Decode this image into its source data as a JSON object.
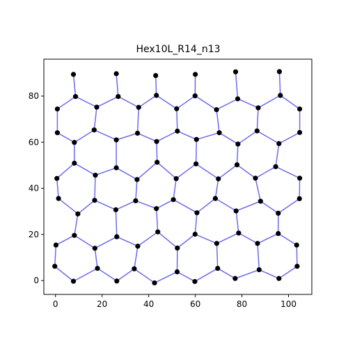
{
  "chart_data": {
    "type": "graph",
    "title": "Hex10L_R14_n13",
    "xlim": [
      -5,
      110
    ],
    "ylim": [
      -6,
      96
    ],
    "x_ticks": [
      0,
      20,
      40,
      60,
      80,
      100
    ],
    "y_ticks": [
      0,
      20,
      40,
      60,
      80
    ],
    "colors": {
      "edge": "#6a6af0",
      "node": "#000000"
    },
    "nodes": [
      [
        7.7,
        89.4
      ],
      [
        26.1,
        89.7
      ],
      [
        43.0,
        88.9
      ],
      [
        60.0,
        89.4
      ],
      [
        77.3,
        90.5
      ],
      [
        96.1,
        90.6
      ],
      [
        0.8,
        74.4
      ],
      [
        8.6,
        79.8
      ],
      [
        17.7,
        75.2
      ],
      [
        26.9,
        79.8
      ],
      [
        35.7,
        75.1
      ],
      [
        43.3,
        80.3
      ],
      [
        52.0,
        74.5
      ],
      [
        59.9,
        80.1
      ],
      [
        69.1,
        74.1
      ],
      [
        78.2,
        78.8
      ],
      [
        87.0,
        74.9
      ],
      [
        96.5,
        80.3
      ],
      [
        104.8,
        74.4
      ],
      [
        0.8,
        64.1
      ],
      [
        8.1,
        59.9
      ],
      [
        16.6,
        65.3
      ],
      [
        26.1,
        61.0
      ],
      [
        35.2,
        63.9
      ],
      [
        43.4,
        60.3
      ],
      [
        52.3,
        64.8
      ],
      [
        60.5,
        61.2
      ],
      [
        70.3,
        64.1
      ],
      [
        78.3,
        59.2
      ],
      [
        86.5,
        64.9
      ],
      [
        95.9,
        59.4
      ],
      [
        104.8,
        64.2
      ],
      [
        0.6,
        44.3
      ],
      [
        8.1,
        50.9
      ],
      [
        17.1,
        45.7
      ],
      [
        26.1,
        48.9
      ],
      [
        35.0,
        43.8
      ],
      [
        43.6,
        51.3
      ],
      [
        51.8,
        44.2
      ],
      [
        60.3,
        50.6
      ],
      [
        69.9,
        44.1
      ],
      [
        77.9,
        50.2
      ],
      [
        85.8,
        44.4
      ],
      [
        94.5,
        49.4
      ],
      [
        104.8,
        44.4
      ],
      [
        1.3,
        35.6
      ],
      [
        9.6,
        28.9
      ],
      [
        16.8,
        34.8
      ],
      [
        25.9,
        30.7
      ],
      [
        34.4,
        34.6
      ],
      [
        43.3,
        31.2
      ],
      [
        50.6,
        35.1
      ],
      [
        60.7,
        29.4
      ],
      [
        68.6,
        35.6
      ],
      [
        77.5,
        30.2
      ],
      [
        88.0,
        34.4
      ],
      [
        95.6,
        29.2
      ],
      [
        104.7,
        35.5
      ],
      [
        0.2,
        15.4
      ],
      [
        8.1,
        19.6
      ],
      [
        16.9,
        14.0
      ],
      [
        26.3,
        19.0
      ],
      [
        35.3,
        14.9
      ],
      [
        43.9,
        21.1
      ],
      [
        52.3,
        14.1
      ],
      [
        59.9,
        20.1
      ],
      [
        69.2,
        16.1
      ],
      [
        78.6,
        20.6
      ],
      [
        86.7,
        16.1
      ],
      [
        95.6,
        20.4
      ],
      [
        103.5,
        15.4
      ],
      [
        -0.3,
        6.2
      ],
      [
        7.7,
        -0.3
      ],
      [
        18.0,
        5.3
      ],
      [
        26.3,
        -0.2
      ],
      [
        33.8,
        5.1
      ],
      [
        42.5,
        -1.0
      ],
      [
        52.2,
        3.8
      ],
      [
        59.8,
        -0.4
      ],
      [
        69.6,
        5.3
      ],
      [
        77.1,
        0.9
      ],
      [
        87.4,
        4.7
      ],
      [
        95.9,
        0.9
      ],
      [
        103.7,
        6.2
      ]
    ],
    "edges": [
      [
        0,
        7
      ],
      [
        1,
        9
      ],
      [
        2,
        11
      ],
      [
        3,
        13
      ],
      [
        4,
        15
      ],
      [
        5,
        17
      ],
      [
        6,
        7
      ],
      [
        7,
        8
      ],
      [
        8,
        9
      ],
      [
        9,
        10
      ],
      [
        10,
        11
      ],
      [
        11,
        12
      ],
      [
        12,
        13
      ],
      [
        13,
        14
      ],
      [
        14,
        15
      ],
      [
        15,
        16
      ],
      [
        16,
        17
      ],
      [
        17,
        18
      ],
      [
        6,
        19
      ],
      [
        8,
        21
      ],
      [
        10,
        23
      ],
      [
        12,
        25
      ],
      [
        14,
        27
      ],
      [
        16,
        29
      ],
      [
        18,
        31
      ],
      [
        19,
        20
      ],
      [
        20,
        21
      ],
      [
        21,
        22
      ],
      [
        22,
        23
      ],
      [
        23,
        24
      ],
      [
        24,
        25
      ],
      [
        25,
        26
      ],
      [
        26,
        27
      ],
      [
        27,
        28
      ],
      [
        28,
        29
      ],
      [
        29,
        30
      ],
      [
        30,
        31
      ],
      [
        20,
        33
      ],
      [
        22,
        35
      ],
      [
        24,
        37
      ],
      [
        26,
        39
      ],
      [
        28,
        41
      ],
      [
        30,
        43
      ],
      [
        32,
        33
      ],
      [
        33,
        34
      ],
      [
        34,
        35
      ],
      [
        35,
        36
      ],
      [
        36,
        37
      ],
      [
        37,
        38
      ],
      [
        38,
        39
      ],
      [
        39,
        40
      ],
      [
        40,
        41
      ],
      [
        41,
        42
      ],
      [
        42,
        43
      ],
      [
        43,
        44
      ],
      [
        32,
        45
      ],
      [
        34,
        47
      ],
      [
        36,
        49
      ],
      [
        38,
        51
      ],
      [
        40,
        53
      ],
      [
        42,
        55
      ],
      [
        44,
        57
      ],
      [
        45,
        46
      ],
      [
        46,
        47
      ],
      [
        47,
        48
      ],
      [
        48,
        49
      ],
      [
        49,
        50
      ],
      [
        50,
        51
      ],
      [
        51,
        52
      ],
      [
        52,
        53
      ],
      [
        53,
        54
      ],
      [
        54,
        55
      ],
      [
        55,
        56
      ],
      [
        56,
        57
      ],
      [
        46,
        59
      ],
      [
        48,
        61
      ],
      [
        50,
        63
      ],
      [
        52,
        65
      ],
      [
        54,
        67
      ],
      [
        56,
        69
      ],
      [
        58,
        59
      ],
      [
        59,
        60
      ],
      [
        60,
        61
      ],
      [
        61,
        62
      ],
      [
        62,
        63
      ],
      [
        63,
        64
      ],
      [
        64,
        65
      ],
      [
        65,
        66
      ],
      [
        66,
        67
      ],
      [
        67,
        68
      ],
      [
        68,
        69
      ],
      [
        69,
        70
      ],
      [
        58,
        71
      ],
      [
        60,
        73
      ],
      [
        62,
        75
      ],
      [
        64,
        77
      ],
      [
        66,
        79
      ],
      [
        68,
        81
      ],
      [
        70,
        83
      ],
      [
        71,
        72
      ],
      [
        72,
        73
      ],
      [
        73,
        74
      ],
      [
        74,
        75
      ],
      [
        75,
        76
      ],
      [
        76,
        77
      ],
      [
        77,
        78
      ],
      [
        78,
        79
      ],
      [
        79,
        80
      ],
      [
        80,
        81
      ],
      [
        81,
        82
      ],
      [
        82,
        83
      ]
    ]
  }
}
